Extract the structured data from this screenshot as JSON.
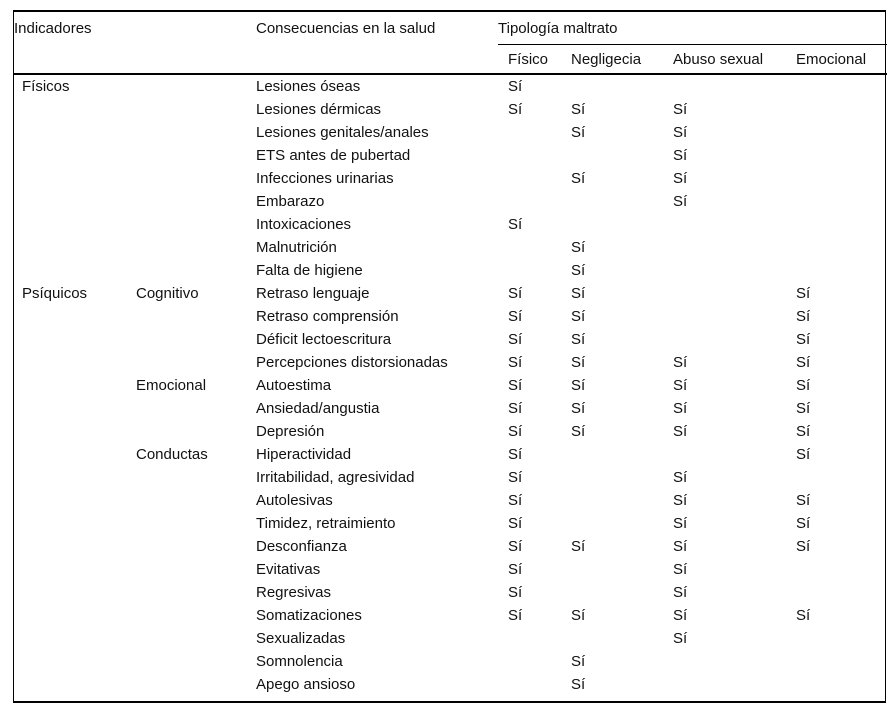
{
  "page": {
    "background": "#ffffff",
    "text_color": "#111111",
    "rule_color": "#000000"
  },
  "table": {
    "header": {
      "indicadores": "Indicadores",
      "consecuencias": "Consecuencias en la salud",
      "tipologia": "Tipología maltrato",
      "types": [
        "Físico",
        "Negligecia",
        "Abuso sexual",
        "Emocional"
      ]
    },
    "yes_label": "Sí",
    "rows": [
      {
        "group": "Físicos",
        "subgroup": "",
        "consequence": "Lesiones óseas",
        "values": [
          "Sí",
          "",
          "",
          ""
        ]
      },
      {
        "group": "",
        "subgroup": "",
        "consequence": "Lesiones dérmicas",
        "values": [
          "Sí",
          "Sí",
          "Sí",
          ""
        ]
      },
      {
        "group": "",
        "subgroup": "",
        "consequence": "Lesiones genitales/anales",
        "values": [
          "",
          "Sí",
          "Sí",
          ""
        ]
      },
      {
        "group": "",
        "subgroup": "",
        "consequence": "ETS antes de pubertad",
        "values": [
          "",
          "",
          "Sí",
          ""
        ]
      },
      {
        "group": "",
        "subgroup": "",
        "consequence": "Infecciones urinarias",
        "values": [
          "",
          "Sí",
          "Sí",
          ""
        ]
      },
      {
        "group": "",
        "subgroup": "",
        "consequence": "Embarazo",
        "values": [
          "",
          "",
          "Sí",
          ""
        ]
      },
      {
        "group": "",
        "subgroup": "",
        "consequence": "Intoxicaciones",
        "values": [
          "Sí",
          "",
          "",
          ""
        ]
      },
      {
        "group": "",
        "subgroup": "",
        "consequence": "Malnutrición",
        "values": [
          "",
          "Sí",
          "",
          ""
        ]
      },
      {
        "group": "",
        "subgroup": "",
        "consequence": "Falta de higiene",
        "values": [
          "",
          "Sí",
          "",
          ""
        ]
      },
      {
        "group": "Psíquicos",
        "subgroup": "Cognitivo",
        "consequence": "Retraso lenguaje",
        "values": [
          "Sí",
          "Sí",
          "",
          "Sí"
        ]
      },
      {
        "group": "",
        "subgroup": "",
        "consequence": "Retraso comprensión",
        "values": [
          "Sí",
          "Sí",
          "",
          "Sí"
        ]
      },
      {
        "group": "",
        "subgroup": "",
        "consequence": "Déficit lectoescritura",
        "values": [
          "Sí",
          "Sí",
          "",
          "Sí"
        ]
      },
      {
        "group": "",
        "subgroup": "",
        "consequence": "Percepciones distorsionadas",
        "values": [
          "Sí",
          "Sí",
          "Sí",
          "Sí"
        ]
      },
      {
        "group": "",
        "subgroup": "Emocional",
        "consequence": "Autoestima",
        "values": [
          "Sí",
          "Sí",
          "Sí",
          "Sí"
        ]
      },
      {
        "group": "",
        "subgroup": "",
        "consequence": "Ansiedad/angustia",
        "values": [
          "Sí",
          "Sí",
          "Sí",
          "Sí"
        ]
      },
      {
        "group": "",
        "subgroup": "",
        "consequence": "Depresión",
        "values": [
          "Sí",
          "Sí",
          "Sí",
          "Sí"
        ]
      },
      {
        "group": "",
        "subgroup": "Conductas",
        "consequence": "Hiperactividad",
        "values": [
          "Sí",
          "",
          "",
          "Sí"
        ]
      },
      {
        "group": "",
        "subgroup": "",
        "consequence": "Irritabilidad, agresividad",
        "values": [
          "Sí",
          "",
          "Sí",
          ""
        ]
      },
      {
        "group": "",
        "subgroup": "",
        "consequence": "Autolesivas",
        "values": [
          "Sí",
          "",
          "Sí",
          "Sí"
        ]
      },
      {
        "group": "",
        "subgroup": "",
        "consequence": "Timidez, retraimiento",
        "values": [
          "Sí",
          "",
          "Sí",
          "Sí"
        ]
      },
      {
        "group": "",
        "subgroup": "",
        "consequence": "Desconfianza",
        "values": [
          "Sí",
          "Sí",
          "Sí",
          "Sí"
        ]
      },
      {
        "group": "",
        "subgroup": "",
        "consequence": "Evitativas",
        "values": [
          "Sí",
          "",
          "Sí",
          ""
        ]
      },
      {
        "group": "",
        "subgroup": "",
        "consequence": "Regresivas",
        "values": [
          "Sí",
          "",
          "Sí",
          ""
        ]
      },
      {
        "group": "",
        "subgroup": "",
        "consequence": "Somatizaciones",
        "values": [
          "Sí",
          "Sí",
          "Sí",
          "Sí"
        ]
      },
      {
        "group": "",
        "subgroup": "",
        "consequence": "Sexualizadas",
        "values": [
          "",
          "",
          "Sí",
          ""
        ]
      },
      {
        "group": "",
        "subgroup": "",
        "consequence": "Somnolencia",
        "values": [
          "",
          "Sí",
          "",
          ""
        ]
      },
      {
        "group": "",
        "subgroup": "",
        "consequence": "Apego ansioso",
        "values": [
          "",
          "Sí",
          "",
          ""
        ]
      }
    ]
  }
}
